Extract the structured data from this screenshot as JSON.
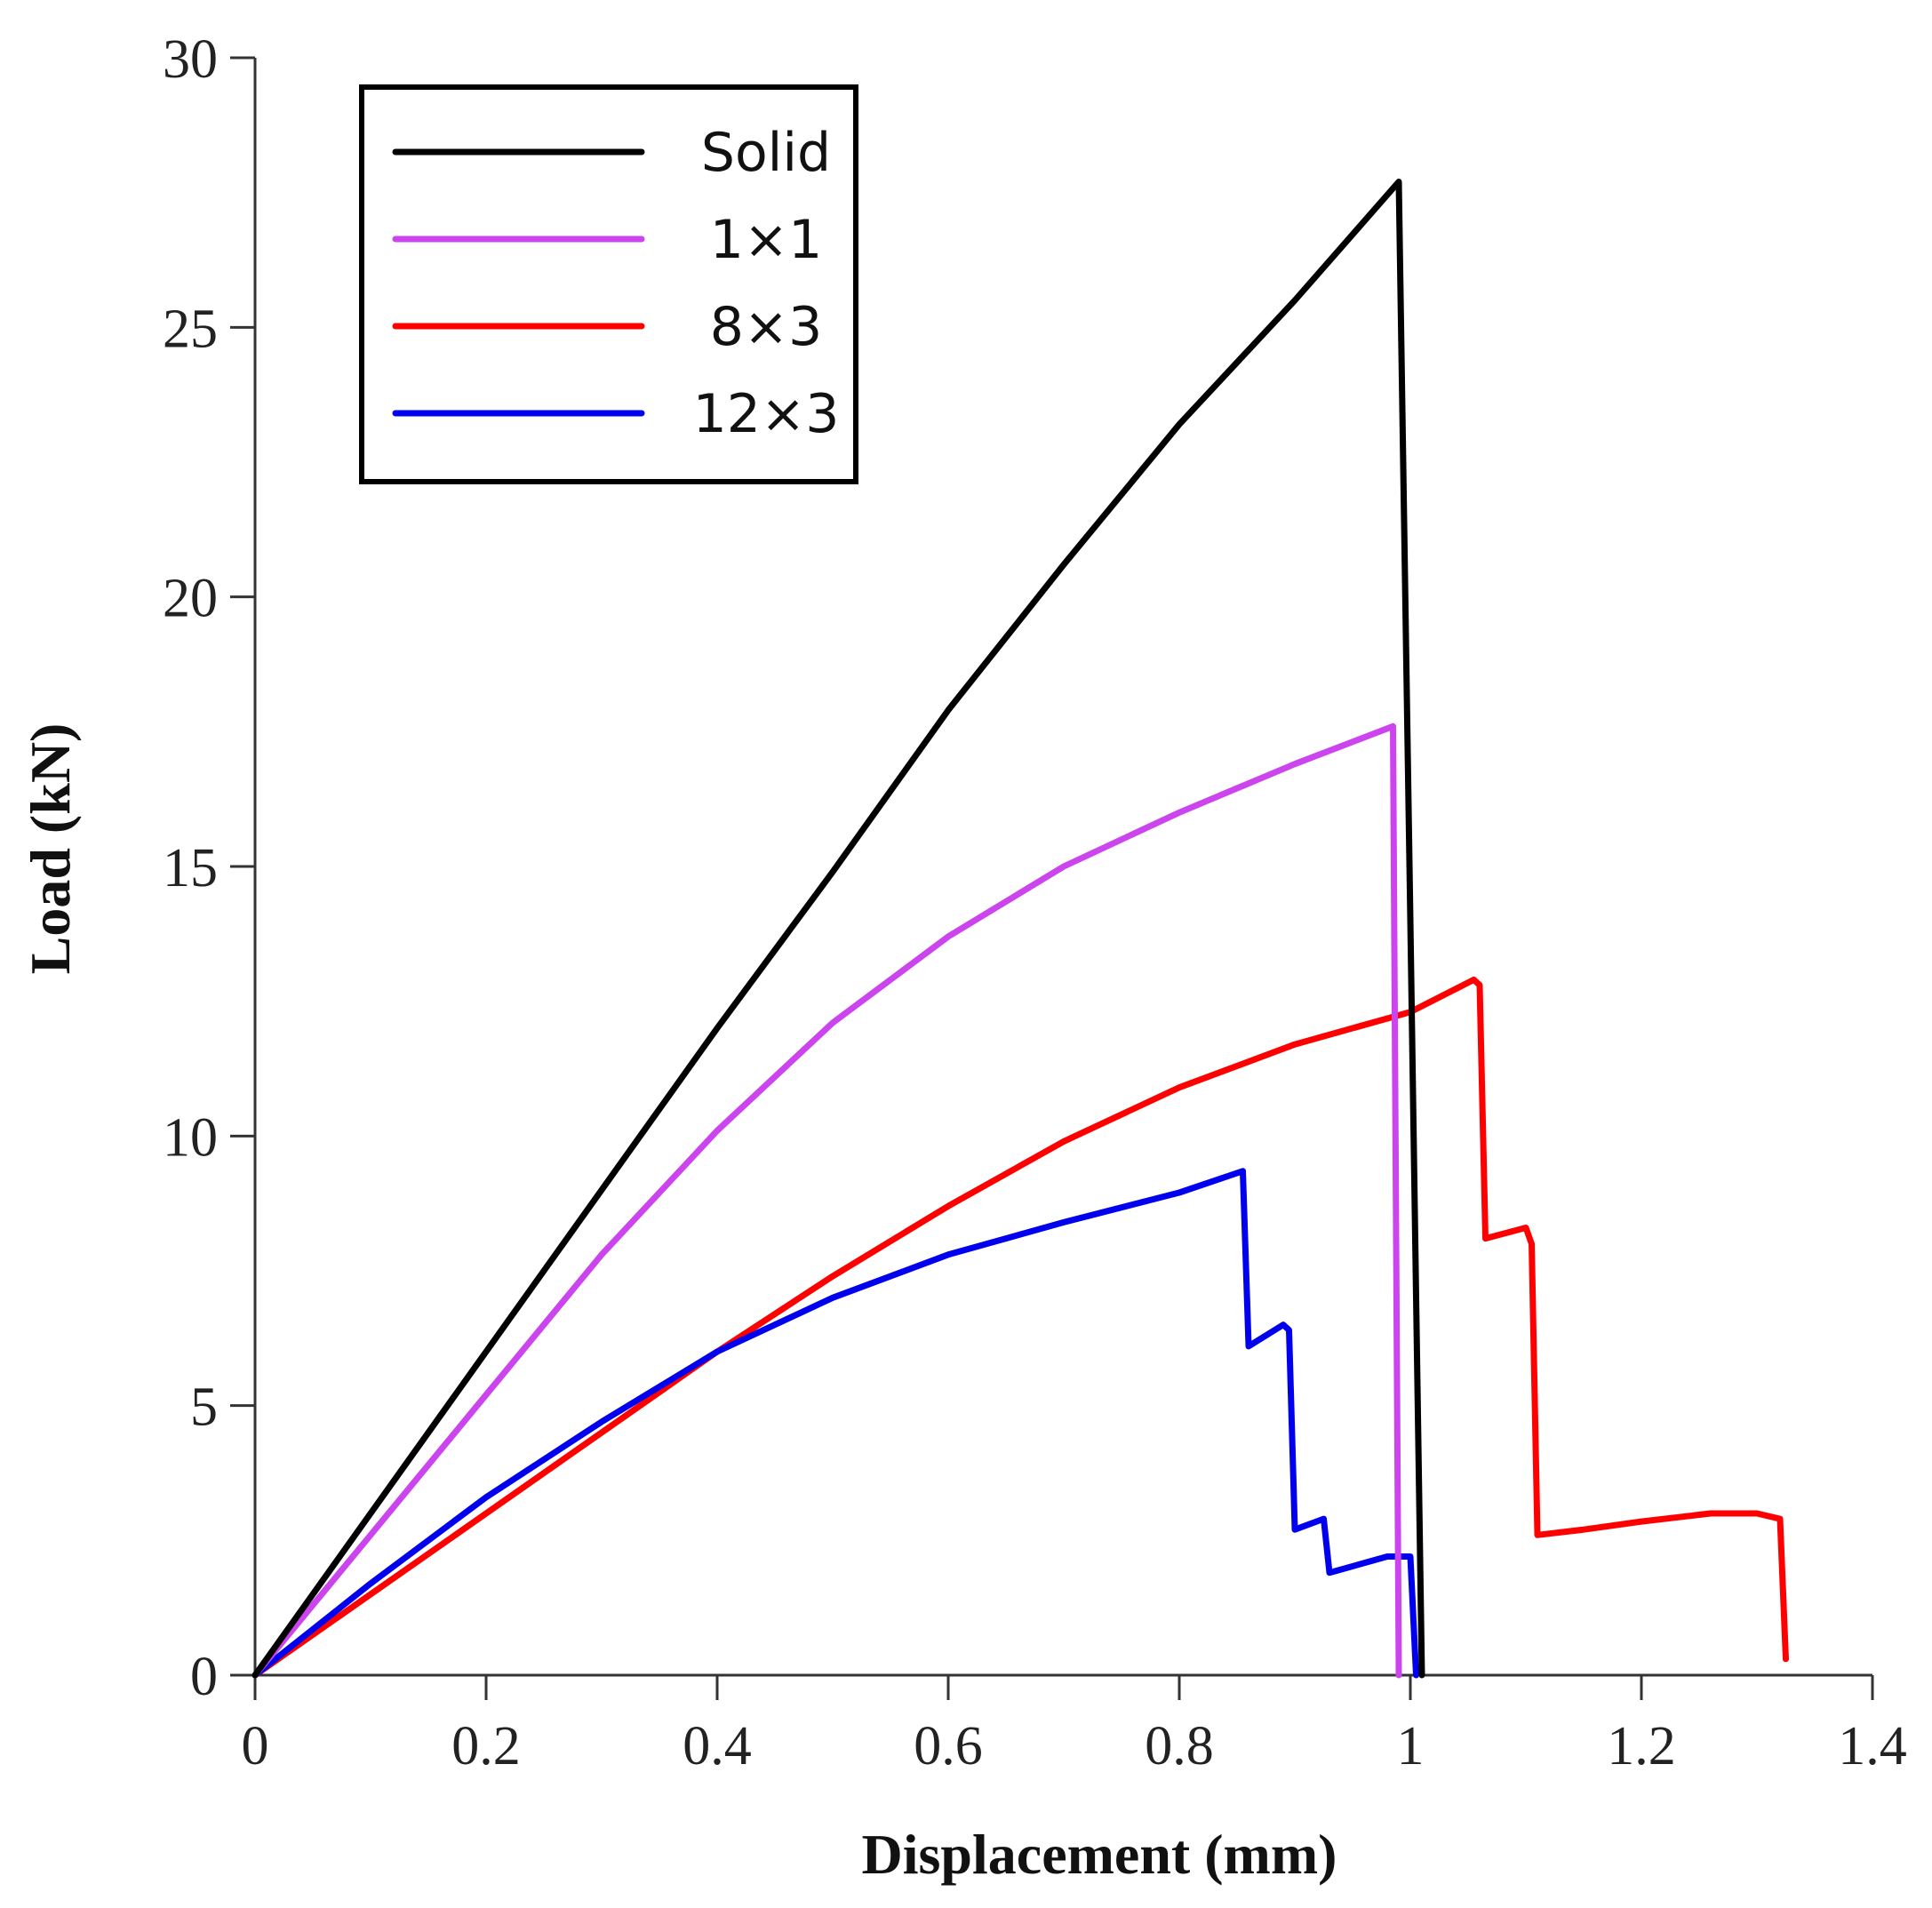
{
  "chart_data": {
    "type": "line",
    "xlabel": "Displacement (mm)",
    "ylabel": "Load (kN)",
    "xlim": [
      0,
      1.4
    ],
    "ylim": [
      0,
      30
    ],
    "x_ticks": [
      0,
      0.2,
      0.4,
      0.6,
      0.8,
      1,
      1.2,
      1.4
    ],
    "x_tick_labels": [
      "0",
      "0.2",
      "0.4",
      "0.6",
      "0.8",
      "1",
      "1.2",
      "1.4"
    ],
    "y_ticks": [
      0,
      5,
      10,
      15,
      20,
      25,
      30
    ],
    "y_tick_labels": [
      "0",
      "5",
      "10",
      "15",
      "20",
      "25",
      "30"
    ],
    "legend_position": "top-left",
    "series": [
      {
        "name": "Solid",
        "color": "#000000",
        "points": [
          [
            0,
            0
          ],
          [
            0.1,
            3.0
          ],
          [
            0.2,
            6.0
          ],
          [
            0.3,
            9.0
          ],
          [
            0.4,
            12.0
          ],
          [
            0.5,
            14.9
          ],
          [
            0.6,
            17.9
          ],
          [
            0.7,
            20.6
          ],
          [
            0.8,
            23.2
          ],
          [
            0.9,
            25.5
          ],
          [
            0.99,
            27.7
          ],
          [
            1.0,
            14.0
          ],
          [
            1.01,
            0
          ]
        ]
      },
      {
        "name": "1×1",
        "color": "#cc44ee",
        "points": [
          [
            0,
            0
          ],
          [
            0.1,
            2.6
          ],
          [
            0.2,
            5.2
          ],
          [
            0.3,
            7.8
          ],
          [
            0.4,
            10.1
          ],
          [
            0.5,
            12.1
          ],
          [
            0.6,
            13.7
          ],
          [
            0.7,
            15.0
          ],
          [
            0.8,
            16.0
          ],
          [
            0.9,
            16.9
          ],
          [
            0.985,
            17.6
          ],
          [
            0.99,
            0
          ]
        ]
      },
      {
        "name": "8×3",
        "color": "#ff0000",
        "points": [
          [
            0,
            0
          ],
          [
            0.1,
            1.5
          ],
          [
            0.2,
            3.0
          ],
          [
            0.3,
            4.5
          ],
          [
            0.4,
            6.0
          ],
          [
            0.5,
            7.4
          ],
          [
            0.6,
            8.7
          ],
          [
            0.7,
            9.9
          ],
          [
            0.8,
            10.9
          ],
          [
            0.9,
            11.7
          ],
          [
            1.0,
            12.3
          ],
          [
            1.055,
            12.9
          ],
          [
            1.06,
            12.8
          ],
          [
            1.065,
            8.1
          ],
          [
            1.1,
            8.3
          ],
          [
            1.105,
            8.0
          ],
          [
            1.11,
            2.6
          ],
          [
            1.15,
            2.7
          ],
          [
            1.2,
            2.85
          ],
          [
            1.26,
            3.0
          ],
          [
            1.3,
            3.0
          ],
          [
            1.32,
            2.9
          ],
          [
            1.325,
            0.3
          ]
        ]
      },
      {
        "name": "12×3",
        "color": "#0000ee",
        "points": [
          [
            0,
            0
          ],
          [
            0.1,
            1.7
          ],
          [
            0.2,
            3.3
          ],
          [
            0.3,
            4.7
          ],
          [
            0.4,
            6.0
          ],
          [
            0.5,
            7.0
          ],
          [
            0.6,
            7.8
          ],
          [
            0.7,
            8.4
          ],
          [
            0.8,
            8.95
          ],
          [
            0.855,
            9.35
          ],
          [
            0.86,
            6.1
          ],
          [
            0.89,
            6.5
          ],
          [
            0.895,
            6.4
          ],
          [
            0.9,
            2.7
          ],
          [
            0.925,
            2.9
          ],
          [
            0.93,
            1.9
          ],
          [
            0.98,
            2.2
          ],
          [
            1.0,
            2.2
          ],
          [
            1.005,
            0
          ]
        ]
      }
    ]
  }
}
